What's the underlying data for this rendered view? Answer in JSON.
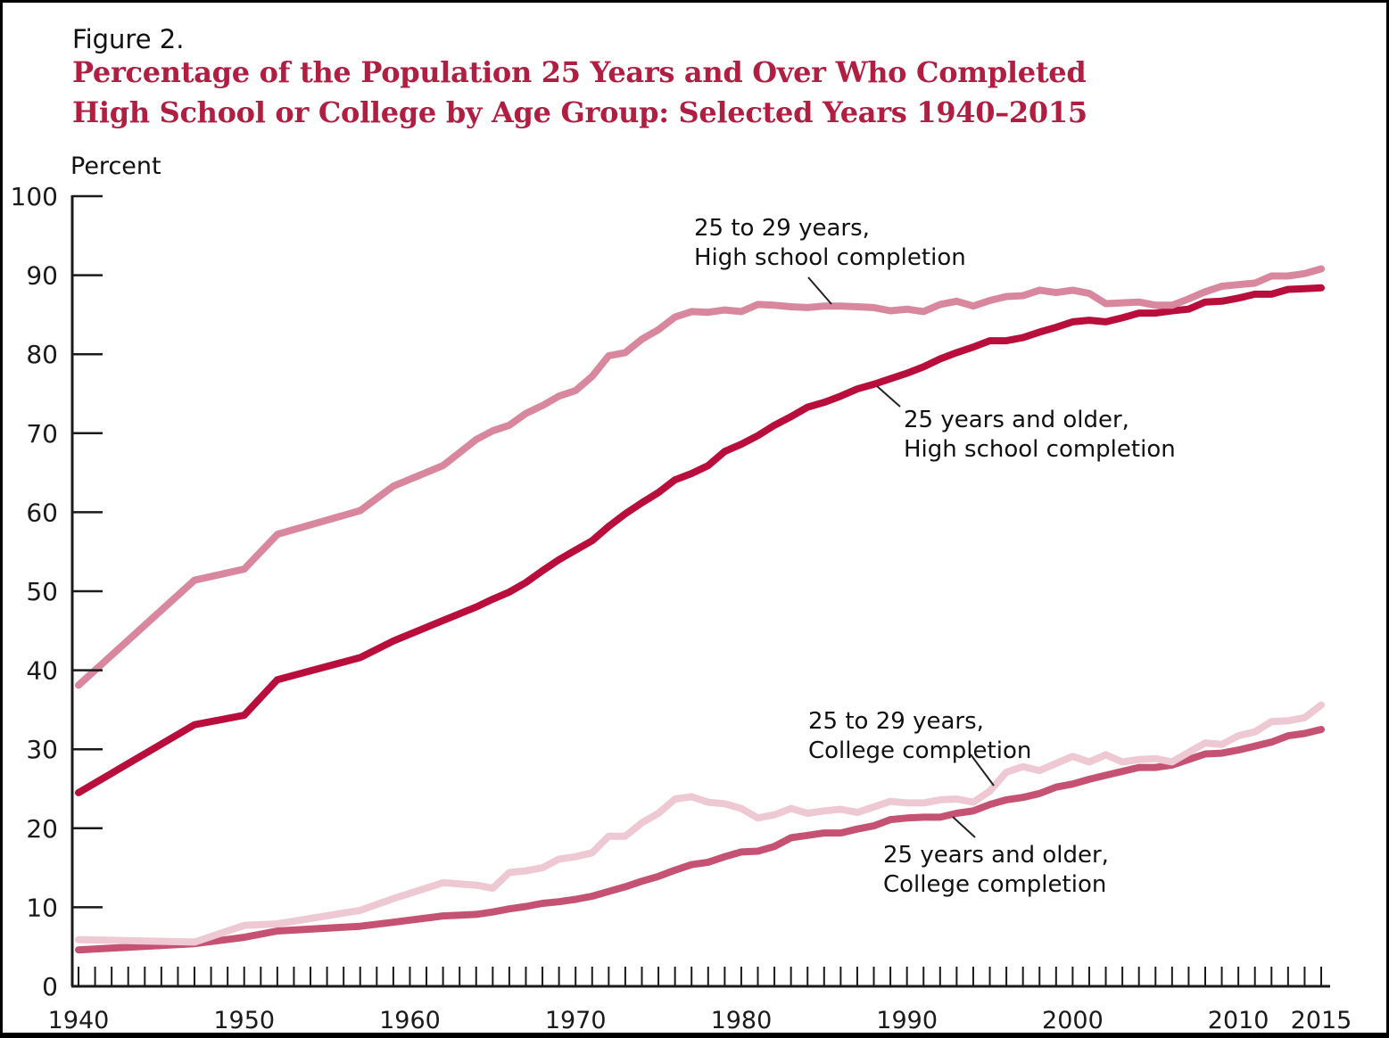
{
  "figure_label": "Figure 2.",
  "title_line1": "Percentage of the Population 25 Years and Over Who Completed",
  "title_line2": "High School or College by Age Group: Selected Years 1940–2015",
  "colors": {
    "title_accent": "#b01e41",
    "hs_25_29_line": "#d9879f",
    "hs_25_plus_line": "#b90d3c",
    "college_25_29_line": "#eec9d4",
    "college_25_plus_line": "#c65273",
    "axis": "#1a1a1a"
  },
  "chart_data": {
    "type": "line",
    "title": "Percentage of the Population 25 Years and Over Who Completed High School or College by Age Group: Selected Years 1940–2015",
    "ylabel": "Percent",
    "xlabel": "",
    "ylim": [
      0,
      100
    ],
    "xlim": [
      1940,
      2015
    ],
    "grid": false,
    "legend_position": "inline-annotations",
    "y_ticks": [
      0,
      10,
      20,
      30,
      40,
      50,
      60,
      70,
      80,
      90,
      100
    ],
    "x_tick_labels": [
      1940,
      1950,
      1960,
      1970,
      1980,
      1990,
      2000,
      2010,
      2015
    ],
    "x_minor_tick_every_years": 1,
    "x": [
      1940,
      1947,
      1950,
      1952,
      1957,
      1959,
      1962,
      1964,
      1965,
      1966,
      1967,
      1968,
      1969,
      1970,
      1971,
      1972,
      1973,
      1974,
      1975,
      1976,
      1977,
      1978,
      1979,
      1980,
      1981,
      1982,
      1983,
      1984,
      1985,
      1986,
      1987,
      1988,
      1989,
      1990,
      1991,
      1992,
      1993,
      1994,
      1995,
      1996,
      1997,
      1998,
      1999,
      2000,
      2001,
      2002,
      2003,
      2004,
      2005,
      2006,
      2007,
      2008,
      2009,
      2010,
      2011,
      2012,
      2013,
      2014,
      2015
    ],
    "series": [
      {
        "name": "25 to 29 years, High school completion",
        "color": "#d9879f",
        "values": [
          38.1,
          51.4,
          52.8,
          57.2,
          60.2,
          63.3,
          65.9,
          69.2,
          70.3,
          71.0,
          72.5,
          73.5,
          74.7,
          75.4,
          77.2,
          79.8,
          80.2,
          81.9,
          83.1,
          84.7,
          85.4,
          85.3,
          85.6,
          85.4,
          86.3,
          86.2,
          86.0,
          85.9,
          86.1,
          86.1,
          86.0,
          85.9,
          85.5,
          85.7,
          85.4,
          86.3,
          86.7,
          86.1,
          86.8,
          87.3,
          87.4,
          88.1,
          87.8,
          88.1,
          87.7,
          86.4,
          86.5,
          86.6,
          86.2,
          86.2,
          87.0,
          87.9,
          88.6,
          88.8,
          89.0,
          89.9,
          89.9,
          90.2,
          90.8
        ]
      },
      {
        "name": "25 years and older, High school completion",
        "color": "#b90d3c",
        "values": [
          24.5,
          33.1,
          34.3,
          38.8,
          41.6,
          43.7,
          46.3,
          48.0,
          49.0,
          49.9,
          51.1,
          52.6,
          54.0,
          55.2,
          56.4,
          58.2,
          59.8,
          61.2,
          62.5,
          64.1,
          64.9,
          65.9,
          67.7,
          68.6,
          69.7,
          71.0,
          72.1,
          73.3,
          73.9,
          74.7,
          75.6,
          76.2,
          76.9,
          77.6,
          78.4,
          79.4,
          80.2,
          80.9,
          81.7,
          81.7,
          82.1,
          82.8,
          83.4,
          84.1,
          84.3,
          84.1,
          84.6,
          85.2,
          85.2,
          85.5,
          85.7,
          86.6,
          86.7,
          87.1,
          87.6,
          87.6,
          88.2,
          88.3,
          88.4
        ]
      },
      {
        "name": "25 to 29 years, College completion",
        "color": "#eec9d4",
        "values": [
          5.9,
          5.6,
          7.7,
          7.9,
          9.6,
          11.1,
          13.1,
          12.8,
          12.4,
          14.4,
          14.6,
          15.0,
          16.1,
          16.4,
          16.9,
          19.0,
          19.0,
          20.7,
          21.9,
          23.7,
          24.0,
          23.3,
          23.1,
          22.5,
          21.3,
          21.7,
          22.5,
          21.9,
          22.2,
          22.4,
          22.0,
          22.7,
          23.4,
          23.2,
          23.2,
          23.6,
          23.7,
          23.3,
          24.7,
          27.1,
          27.8,
          27.3,
          28.2,
          29.1,
          28.4,
          29.3,
          28.4,
          28.7,
          28.8,
          28.4,
          29.6,
          30.8,
          30.6,
          31.7,
          32.2,
          33.5,
          33.6,
          34.0,
          35.6
        ]
      },
      {
        "name": "25 years and older, College completion",
        "color": "#c65273",
        "values": [
          4.6,
          5.4,
          6.2,
          7.0,
          7.6,
          8.1,
          8.9,
          9.1,
          9.4,
          9.8,
          10.1,
          10.5,
          10.7,
          11.0,
          11.4,
          12.0,
          12.6,
          13.3,
          13.9,
          14.7,
          15.4,
          15.7,
          16.4,
          17.0,
          17.1,
          17.7,
          18.8,
          19.1,
          19.4,
          19.4,
          19.9,
          20.3,
          21.1,
          21.3,
          21.4,
          21.4,
          21.9,
          22.2,
          23.0,
          23.6,
          23.9,
          24.4,
          25.2,
          25.6,
          26.2,
          26.7,
          27.2,
          27.7,
          27.7,
          28.0,
          28.7,
          29.4,
          29.5,
          29.9,
          30.4,
          30.9,
          31.7,
          32.0,
          32.5
        ]
      }
    ],
    "annotations": [
      {
        "line1": "25 to 29 years,",
        "line2": "High school completion"
      },
      {
        "line1": "25 years and older,",
        "line2": "High school completion"
      },
      {
        "line1": "25 to 29 years,",
        "line2": "College completion"
      },
      {
        "line1": "25 years and older,",
        "line2": "College completion"
      }
    ]
  }
}
